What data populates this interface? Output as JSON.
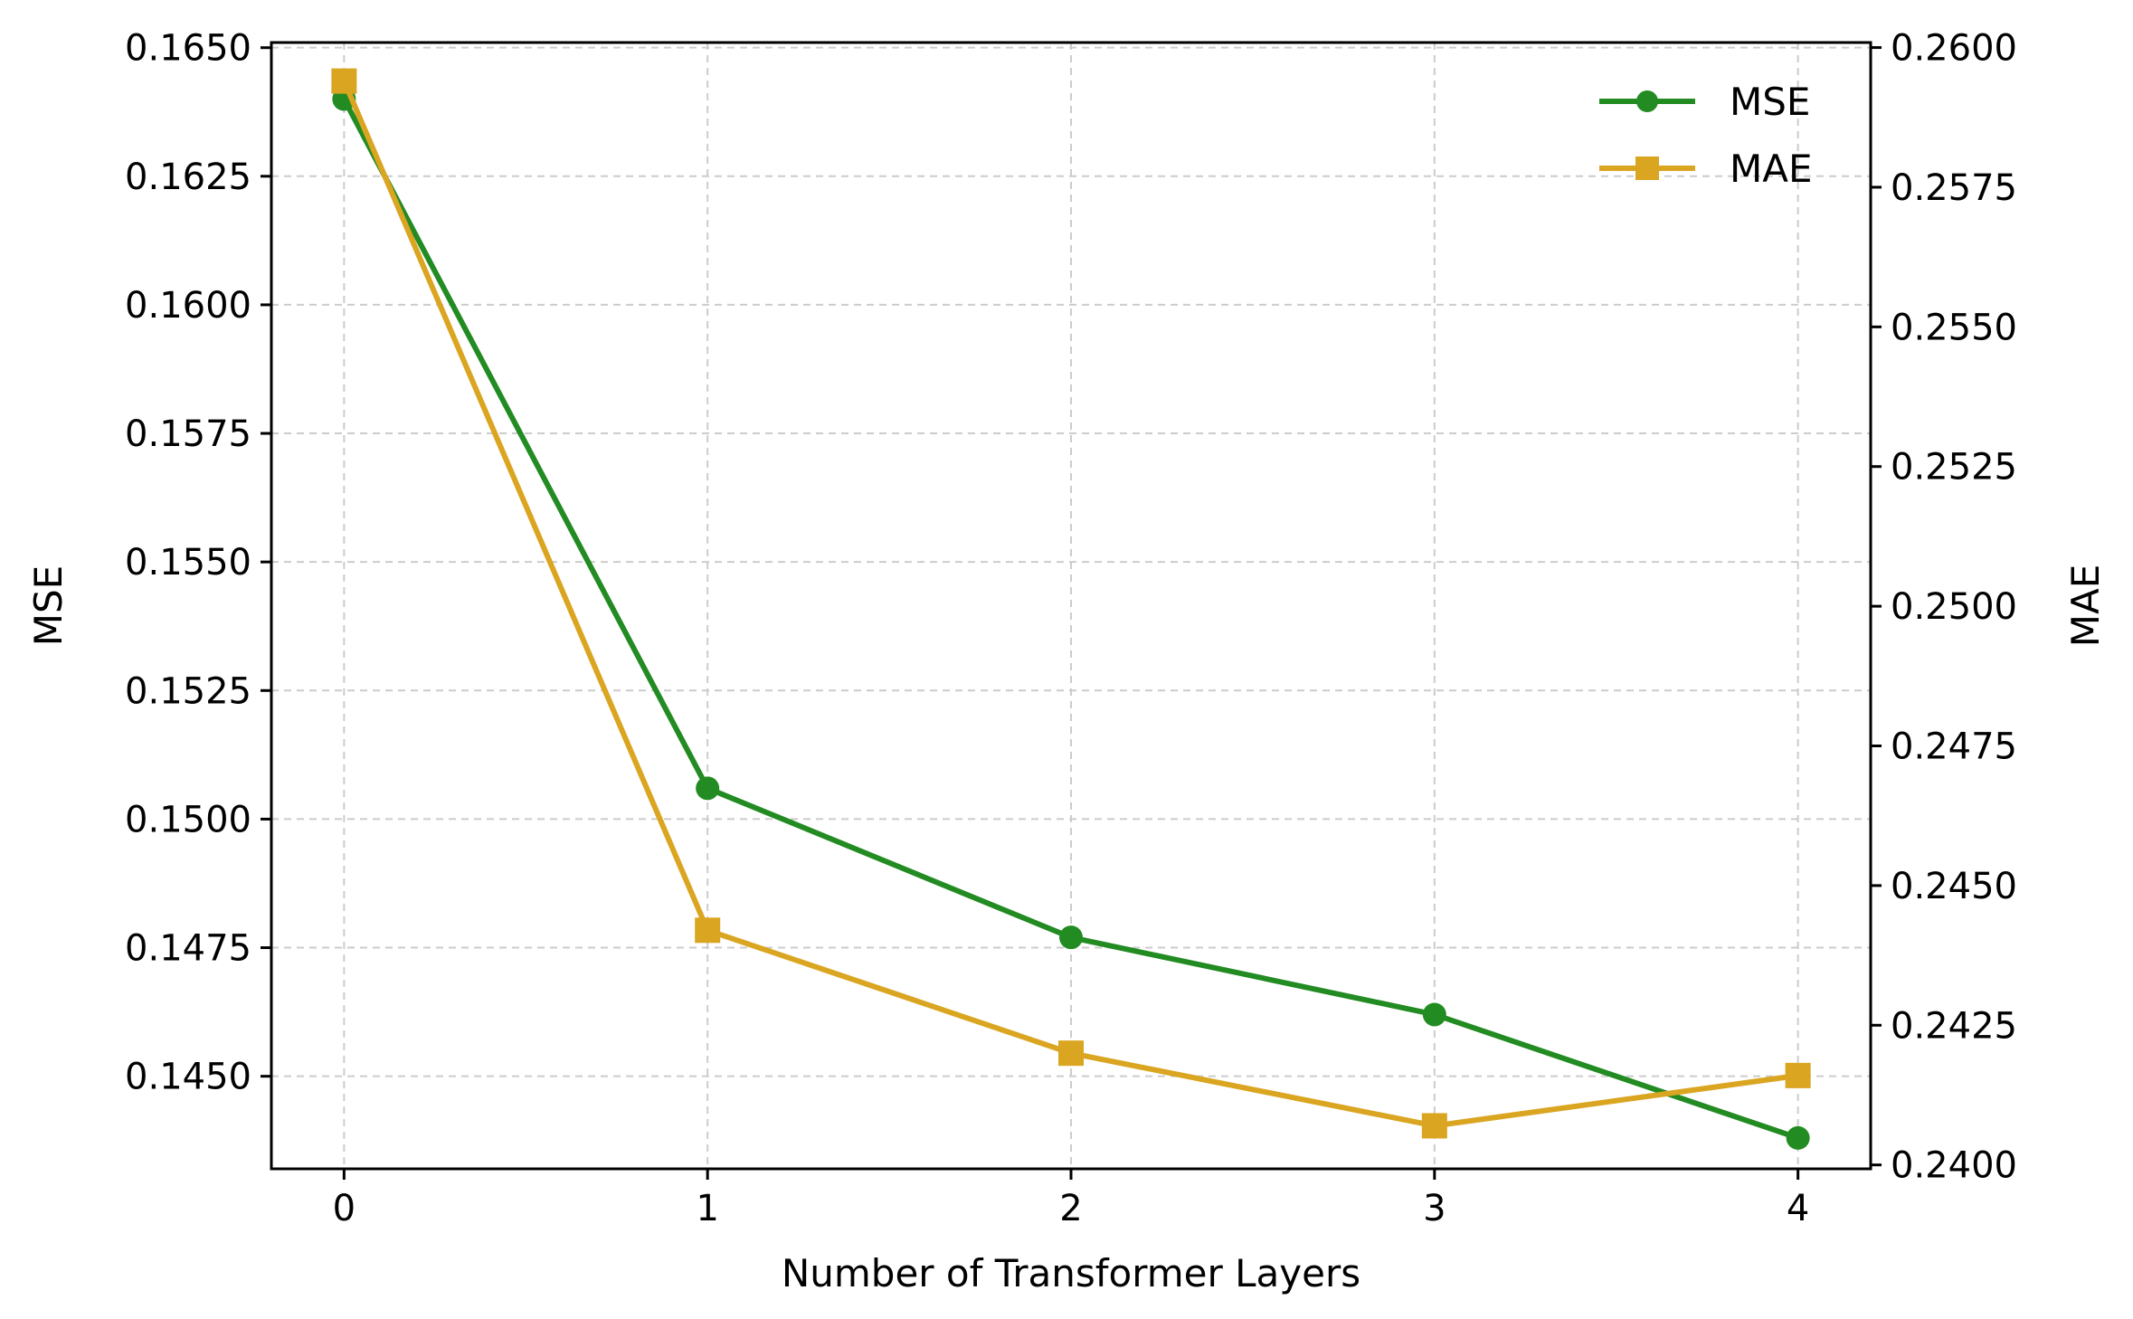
{
  "chart_data": {
    "type": "line",
    "xlabel": "Number of Transformer Layers",
    "ylabel_left": "MSE",
    "ylabel_right": "MAE",
    "x": [
      0,
      1,
      2,
      3,
      4
    ],
    "x_ticks": [
      "0",
      "1",
      "2",
      "3",
      "4"
    ],
    "xlim": [
      -0.2,
      4.2
    ],
    "ylim_left": [
      0.1432,
      0.1651
    ],
    "ylim_right": [
      0.23993,
      0.26009
    ],
    "yticks_left": [
      "0.1450",
      "0.1475",
      "0.1500",
      "0.1525",
      "0.1550",
      "0.1575",
      "0.1600",
      "0.1625",
      "0.1650"
    ],
    "yticks_right": [
      "0.2400",
      "0.2425",
      "0.2450",
      "0.2475",
      "0.2500",
      "0.2525",
      "0.2550",
      "0.2575",
      "0.2600"
    ],
    "grid": true,
    "legend_position": "top-right",
    "series": [
      {
        "name": "MSE",
        "axis": "left",
        "marker": "circle",
        "color": "#228B22",
        "values": [
          0.164,
          0.1506,
          0.1477,
          0.1462,
          0.1438
        ]
      },
      {
        "name": "MAE",
        "axis": "right",
        "marker": "square",
        "color": "#DAA520",
        "values": [
          0.2594,
          0.2442,
          0.242,
          0.2407,
          0.2416
        ]
      }
    ]
  }
}
